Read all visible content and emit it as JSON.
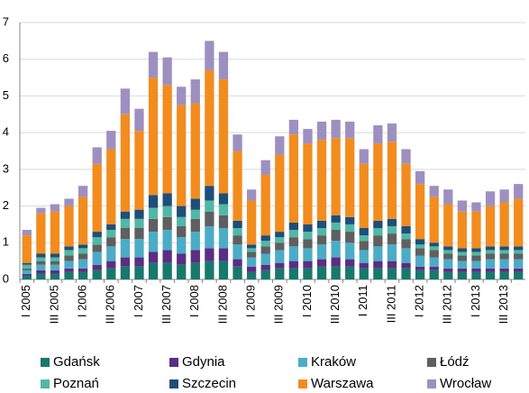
{
  "chart_data": {
    "type": "stacked_bar",
    "categories": [
      "I 2005",
      null,
      "III 2005",
      null,
      "I 2006",
      null,
      "III 2006",
      null,
      "I 2007",
      null,
      "III 2007",
      null,
      "I 2008",
      null,
      "III 2008",
      null,
      "I 2009",
      null,
      "III 2009",
      null,
      "I 2010",
      null,
      "III 2010",
      null,
      "I 2011",
      null,
      "III 2011",
      null,
      "I 2012",
      null,
      "III 2012",
      null,
      "I 2013",
      null,
      "III 2013",
      null
    ],
    "series": [
      {
        "name": "Gdańsk",
        "color": "#17786c",
        "values": [
          0.1,
          0.15,
          0.15,
          0.2,
          0.2,
          0.25,
          0.3,
          0.35,
          0.35,
          0.45,
          0.45,
          0.4,
          0.45,
          0.5,
          0.5,
          0.35,
          0.2,
          0.25,
          0.3,
          0.3,
          0.3,
          0.35,
          0.35,
          0.35,
          0.3,
          0.3,
          0.3,
          0.3,
          0.25,
          0.25,
          0.2,
          0.2,
          0.2,
          0.2,
          0.2,
          0.2
        ]
      },
      {
        "name": "Gdynia",
        "color": "#5b2d83",
        "values": [
          0.05,
          0.1,
          0.1,
          0.1,
          0.1,
          0.15,
          0.2,
          0.25,
          0.25,
          0.3,
          0.35,
          0.3,
          0.35,
          0.35,
          0.35,
          0.2,
          0.15,
          0.15,
          0.15,
          0.2,
          0.2,
          0.2,
          0.25,
          0.2,
          0.15,
          0.2,
          0.2,
          0.15,
          0.1,
          0.1,
          0.1,
          0.1,
          0.1,
          0.1,
          0.1,
          0.1
        ]
      },
      {
        "name": "Kraków",
        "color": "#4bacc6",
        "values": [
          0.1,
          0.15,
          0.15,
          0.2,
          0.25,
          0.35,
          0.4,
          0.5,
          0.5,
          0.55,
          0.55,
          0.45,
          0.5,
          0.6,
          0.55,
          0.4,
          0.25,
          0.3,
          0.35,
          0.4,
          0.35,
          0.4,
          0.45,
          0.45,
          0.35,
          0.4,
          0.45,
          0.4,
          0.3,
          0.25,
          0.25,
          0.2,
          0.2,
          0.25,
          0.25,
          0.25
        ]
      },
      {
        "name": "Łódź",
        "color": "#5f5f5f",
        "values": [
          0.05,
          0.1,
          0.1,
          0.15,
          0.15,
          0.2,
          0.25,
          0.3,
          0.3,
          0.35,
          0.35,
          0.3,
          0.35,
          0.4,
          0.35,
          0.25,
          0.15,
          0.2,
          0.2,
          0.25,
          0.25,
          0.25,
          0.3,
          0.3,
          0.25,
          0.3,
          0.3,
          0.25,
          0.2,
          0.2,
          0.15,
          0.15,
          0.15,
          0.15,
          0.15,
          0.15
        ]
      },
      {
        "name": "Poznań",
        "color": "#4fb8a6",
        "values": [
          0.1,
          0.1,
          0.1,
          0.15,
          0.15,
          0.2,
          0.2,
          0.25,
          0.25,
          0.3,
          0.3,
          0.25,
          0.25,
          0.3,
          0.3,
          0.2,
          0.1,
          0.15,
          0.15,
          0.2,
          0.2,
          0.2,
          0.2,
          0.2,
          0.15,
          0.2,
          0.2,
          0.15,
          0.1,
          0.1,
          0.1,
          0.1,
          0.1,
          0.1,
          0.1,
          0.1
        ]
      },
      {
        "name": "Szczecin",
        "color": "#1f4e79",
        "values": [
          0.05,
          0.1,
          0.1,
          0.1,
          0.1,
          0.15,
          0.15,
          0.2,
          0.25,
          0.35,
          0.35,
          0.3,
          0.3,
          0.4,
          0.3,
          0.2,
          0.1,
          0.15,
          0.15,
          0.2,
          0.2,
          0.2,
          0.2,
          0.2,
          0.2,
          0.2,
          0.2,
          0.2,
          0.15,
          0.1,
          0.1,
          0.1,
          0.1,
          0.1,
          0.1,
          0.1
        ]
      },
      {
        "name": "Warszawa",
        "color": "#f28c1e",
        "values": [
          0.75,
          1.1,
          1.15,
          1.1,
          1.3,
          1.85,
          2.05,
          2.65,
          2.15,
          3.2,
          2.95,
          2.75,
          2.6,
          3.15,
          3.1,
          1.9,
          1.2,
          1.65,
          2.1,
          2.4,
          2.2,
          2.2,
          2.1,
          2.15,
          1.75,
          2.1,
          2.1,
          1.7,
          1.5,
          1.25,
          1.15,
          1.0,
          1.0,
          1.1,
          1.2,
          1.3
        ]
      },
      {
        "name": "Wrocław",
        "color": "#9d90c0",
        "values": [
          0.15,
          0.15,
          0.2,
          0.2,
          0.3,
          0.45,
          0.5,
          0.7,
          0.6,
          0.7,
          0.75,
          0.5,
          0.65,
          0.8,
          0.75,
          0.45,
          0.3,
          0.4,
          0.5,
          0.4,
          0.4,
          0.5,
          0.5,
          0.45,
          0.4,
          0.5,
          0.5,
          0.4,
          0.35,
          0.3,
          0.4,
          0.3,
          0.25,
          0.4,
          0.35,
          0.4
        ]
      }
    ],
    "ylim": [
      0,
      7
    ],
    "yticks": [
      0,
      1,
      2,
      3,
      4,
      5,
      6,
      7
    ],
    "grid": true
  }
}
